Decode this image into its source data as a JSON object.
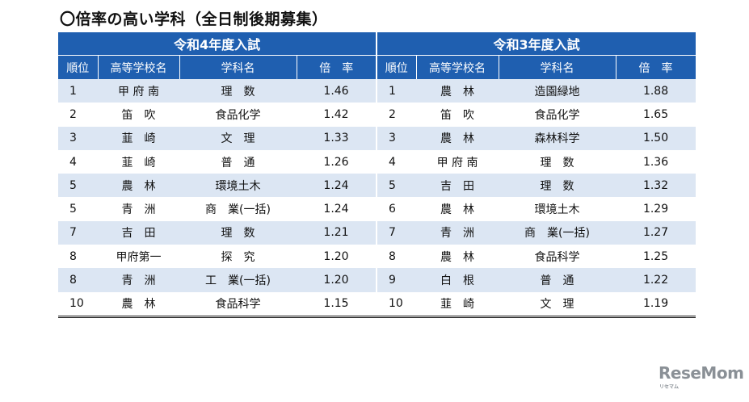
{
  "title": "〇倍率の高い学科（全日制後期募集）",
  "tables": [
    {
      "year": "令和4年度入試",
      "headers": [
        "順位",
        "高等学校名",
        "学科名",
        "倍　率"
      ],
      "rows": [
        [
          "1",
          "甲 府 南",
          "理　数",
          "1.46"
        ],
        [
          "2",
          "笛　吹",
          "食品化学",
          "1.42"
        ],
        [
          "3",
          "韮　崎",
          "文　理",
          "1.33"
        ],
        [
          "4",
          "韮　崎",
          "普　通",
          "1.26"
        ],
        [
          "5",
          "農　林",
          "環境土木",
          "1.24"
        ],
        [
          "5",
          "青　洲",
          "商　業(一括)",
          "1.24"
        ],
        [
          "7",
          "吉　田",
          "理　数",
          "1.21"
        ],
        [
          "8",
          "甲府第一",
          "探　究",
          "1.20"
        ],
        [
          "8",
          "青　洲",
          "工　業(一括)",
          "1.20"
        ],
        [
          "10",
          "農　林",
          "食品科学",
          "1.15"
        ]
      ]
    },
    {
      "year": "令和3年度入試",
      "headers": [
        "順位",
        "高等学校名",
        "学科名",
        "倍　率"
      ],
      "rows": [
        [
          "1",
          "農　林",
          "造園緑地",
          "1.88"
        ],
        [
          "2",
          "笛　吹",
          "食品化学",
          "1.65"
        ],
        [
          "3",
          "農　林",
          "森林科学",
          "1.50"
        ],
        [
          "4",
          "甲 府 南",
          "理　数",
          "1.36"
        ],
        [
          "5",
          "吉　田",
          "理　数",
          "1.32"
        ],
        [
          "6",
          "農　林",
          "環境土木",
          "1.29"
        ],
        [
          "7",
          "青　洲",
          "商　業(一括)",
          "1.27"
        ],
        [
          "8",
          "農　林",
          "食品科学",
          "1.25"
        ],
        [
          "9",
          "白　根",
          "普　通",
          "1.22"
        ],
        [
          "10",
          "韮　崎",
          "文　理",
          "1.19"
        ]
      ]
    }
  ],
  "watermark": {
    "brand": "ReseMom",
    "sub": "リセマム"
  },
  "colors": {
    "header": "#1f5fb0",
    "stripe": "#dce6f3"
  }
}
